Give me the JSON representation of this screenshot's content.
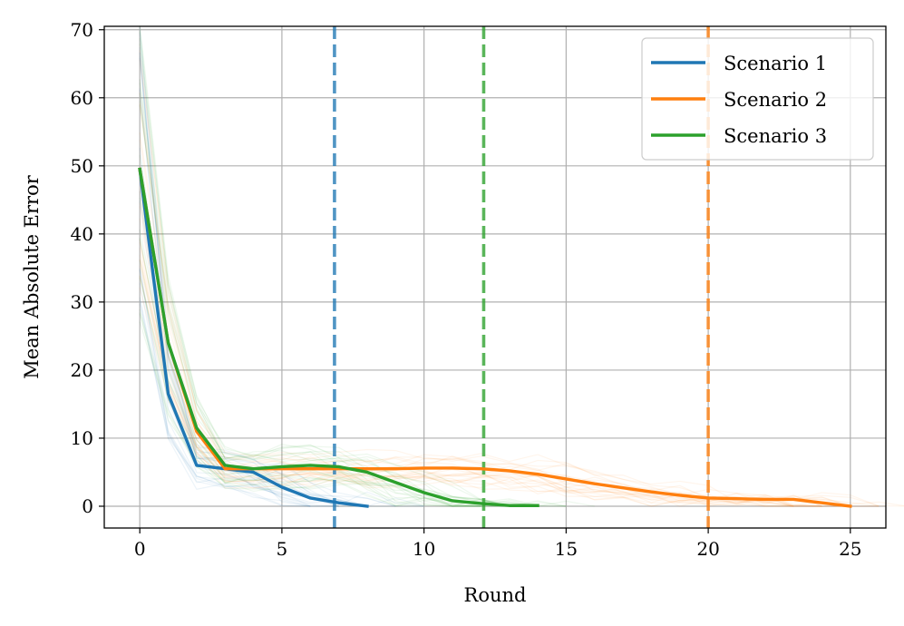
{
  "chart_data": {
    "type": "line",
    "title": "",
    "xlabel": "Round",
    "ylabel": "Mean Absolute Error",
    "xlim": [
      -1.25,
      26.25
    ],
    "ylim": [
      -3.2,
      70.5
    ],
    "xticks": [
      "0",
      "5",
      "10",
      "15",
      "20",
      "25"
    ],
    "yticks": [
      "0",
      "10",
      "20",
      "30",
      "40",
      "50",
      "60",
      "70"
    ],
    "grid": true,
    "legend_position": "top-right",
    "series": [
      {
        "name": "Scenario 1",
        "color": "#1f77b4",
        "x": [
          0,
          1,
          2,
          3,
          4,
          5,
          6,
          7,
          8
        ],
        "y": [
          49.5,
          16.5,
          6,
          5.5,
          5,
          2.8,
          1.2,
          0.5,
          0
        ]
      },
      {
        "name": "Scenario 2",
        "color": "#ff7f0e",
        "x": [
          0,
          1,
          2,
          3,
          4,
          5,
          6,
          7,
          8,
          9,
          10,
          11,
          12,
          13,
          14,
          15,
          16,
          17,
          18,
          19,
          20,
          21,
          22,
          23,
          24,
          25
        ],
        "y": [
          49.5,
          24,
          11,
          5.5,
          5.5,
          5.5,
          5.5,
          5.5,
          5.5,
          5.5,
          5.6,
          5.6,
          5.5,
          5.2,
          4.7,
          4,
          3.3,
          2.7,
          2.1,
          1.6,
          1.2,
          1.1,
          1.0,
          1.0,
          0.5,
          0
        ]
      },
      {
        "name": "Scenario 3",
        "color": "#2ca02c",
        "x": [
          0,
          1,
          2,
          3,
          4,
          5,
          6,
          7,
          8,
          9,
          10,
          11,
          12,
          13,
          14
        ],
        "y": [
          49.5,
          24,
          11.5,
          6,
          5.5,
          5.8,
          6,
          5.8,
          5,
          3.5,
          2,
          0.8,
          0.4,
          0.1,
          0.1
        ]
      }
    ],
    "vlines": [
      {
        "x": 6.85,
        "color": "#1f77b4"
      },
      {
        "x": 12.1,
        "color": "#2ca02c"
      },
      {
        "x": 20.0,
        "color": "#ff7f0e"
      }
    ]
  }
}
